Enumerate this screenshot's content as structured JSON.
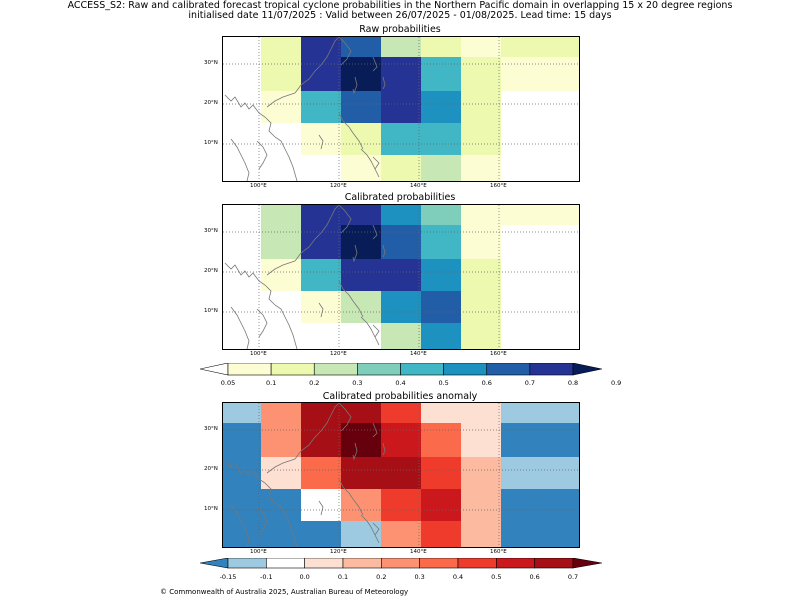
{
  "header": {
    "line1": "ACCESS_S2: Raw and calibrated forecast tropical cyclone probabilities in the Northern Pacific domain in overlapping 15 x 20 degree regions",
    "line2": "initialised date 11/07/2025 :  Valid between 26/07/2025 - 01/08/2025. Lead time: 15 days"
  },
  "panels": [
    {
      "title": "Raw probabilities",
      "kind": "prob",
      "grid": [
        [
          0,
          2,
          8,
          7,
          3,
          2,
          1,
          2
        ],
        [
          0,
          2,
          8,
          9,
          8,
          5,
          2,
          1
        ],
        [
          0,
          1,
          5,
          7,
          8,
          6,
          2,
          0
        ],
        [
          0,
          0,
          1,
          2,
          5,
          5,
          2,
          0
        ],
        [
          0,
          0,
          0,
          1,
          2,
          3,
          1,
          0
        ]
      ]
    },
    {
      "title": "Calibrated probabilities",
      "kind": "prob",
      "grid": [
        [
          0,
          3,
          8,
          8,
          6,
          4,
          1,
          1
        ],
        [
          0,
          3,
          8,
          9,
          7,
          5,
          1,
          0
        ],
        [
          0,
          1,
          5,
          8,
          8,
          6,
          2,
          0
        ],
        [
          0,
          0,
          1,
          3,
          6,
          7,
          2,
          0
        ],
        [
          0,
          0,
          0,
          0,
          3,
          6,
          2,
          0
        ]
      ]
    },
    {
      "title": "Calibrated probabilities anomaly",
      "kind": "anom",
      "grid": [
        [
          1,
          5,
          9,
          9,
          7,
          3,
          3,
          1
        ],
        [
          0,
          5,
          9,
          10,
          8,
          6,
          3,
          0
        ],
        [
          0,
          3,
          6,
          9,
          9,
          7,
          4,
          1
        ],
        [
          0,
          0,
          2,
          5,
          7,
          8,
          4,
          0
        ],
        [
          0,
          0,
          0,
          1,
          5,
          7,
          4,
          0
        ]
      ]
    }
  ],
  "axes": {
    "x_ticks": [
      "100°E",
      "120°E",
      "140°E",
      "160°E"
    ],
    "y_ticks": [
      "30°N",
      "20°N",
      "10°N"
    ]
  },
  "colorbars": [
    {
      "labels": [
        "0.05",
        "0.1",
        "0.2",
        "0.3",
        "0.4",
        "0.5",
        "0.6",
        "0.7",
        "0.8",
        "0.9"
      ]
    },
    {
      "labels": [
        "-0.15",
        "-0.1",
        "0.0",
        "0.1",
        "0.2",
        "0.3",
        "0.4",
        "0.5",
        "0.6",
        "0.7"
      ]
    }
  ],
  "palettes": {
    "prob": [
      "#ffffff",
      "#fdfdd4",
      "#eef9b0",
      "#c7e8b4",
      "#7fcdbb",
      "#41b6c4",
      "#1d91c0",
      "#225ea8",
      "#253494",
      "#081d58"
    ],
    "anom": [
      "#3182bd",
      "#9ecae1",
      "#ffffff",
      "#fee0d2",
      "#fcbba1",
      "#fc9272",
      "#fb6a4a",
      "#ef3b2c",
      "#cb181d",
      "#a50f15",
      "#67000d"
    ]
  },
  "footer": "© Commonwealth of Australia 2025, Australian Bureau of Meteorology"
}
